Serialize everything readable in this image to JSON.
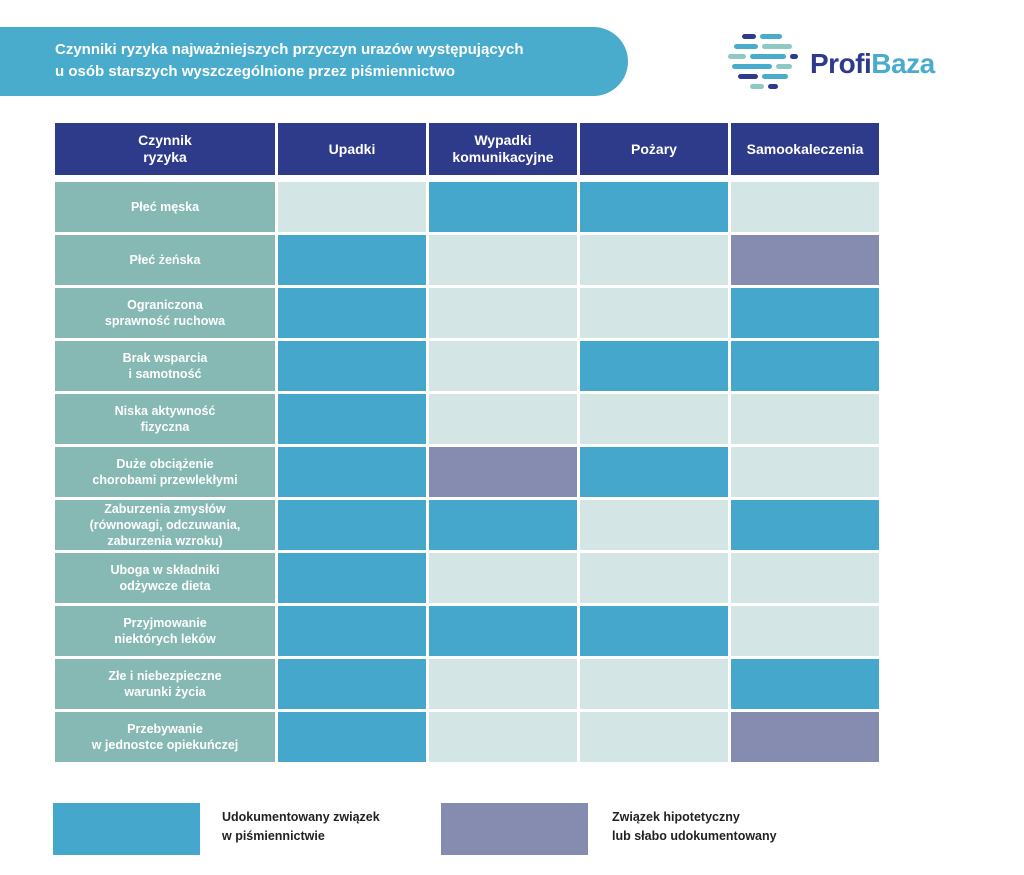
{
  "title": {
    "line1": "Czynniki ryzyka najważniejszych przyczyn urazów występujących",
    "line2": "u osób starszych wyszczególnione przez piśmiennictwo"
  },
  "logo": {
    "part1": "Profi",
    "part2": "Baza"
  },
  "table": {
    "factor_header": [
      "Czynnik",
      "ryzyka"
    ],
    "columns": [
      [
        "Upadki"
      ],
      [
        "Wypadki",
        "komunikacyjne"
      ],
      [
        "Pożary"
      ],
      [
        "Samookaleczenia"
      ]
    ],
    "rows": [
      {
        "factor": [
          "Płeć męska"
        ],
        "cells": [
          "none",
          "doc",
          "doc",
          "none"
        ]
      },
      {
        "factor": [
          "Płeć żeńska"
        ],
        "cells": [
          "doc",
          "none",
          "none",
          "hypo"
        ]
      },
      {
        "factor": [
          "Ograniczona",
          "sprawność ruchowa"
        ],
        "cells": [
          "doc",
          "none",
          "none",
          "doc"
        ]
      },
      {
        "factor": [
          "Brak wsparcia",
          "i samotność"
        ],
        "cells": [
          "doc",
          "none",
          "doc",
          "doc"
        ]
      },
      {
        "factor": [
          "Niska aktywność",
          "fizyczna"
        ],
        "cells": [
          "doc",
          "none",
          "none",
          "none"
        ]
      },
      {
        "factor": [
          "Duże obciążenie",
          "chorobami przewlekłymi"
        ],
        "cells": [
          "doc",
          "hypo",
          "doc",
          "none"
        ]
      },
      {
        "factor": [
          "Zaburzenia zmysłów",
          "(równowagi, odczuwania,",
          "zaburzenia wzroku)"
        ],
        "cells": [
          "doc",
          "doc",
          "none",
          "doc"
        ]
      },
      {
        "factor": [
          "Uboga w składniki",
          "odżywcze dieta"
        ],
        "cells": [
          "doc",
          "none",
          "none",
          "none"
        ]
      },
      {
        "factor": [
          "Przyjmowanie",
          "niektórych leków"
        ],
        "cells": [
          "doc",
          "doc",
          "doc",
          "none"
        ]
      },
      {
        "factor": [
          "Złe i niebezpieczne",
          "warunki życia"
        ],
        "cells": [
          "doc",
          "none",
          "none",
          "doc"
        ]
      },
      {
        "factor": [
          "Przebywanie",
          "w jednostce opiekuńczej"
        ],
        "cells": [
          "doc",
          "none",
          "none",
          "hypo"
        ]
      }
    ]
  },
  "legend": {
    "documented": [
      "Udokumentowany związek",
      "w piśmiennictwie"
    ],
    "hypothetical": [
      "Związek hipotetyczny",
      "lub słabo udokumentowany"
    ]
  },
  "colors": {
    "documented": "#44a7cb",
    "hypothetical": "#868caf",
    "none": "#d4e5e6",
    "header": "#2e3a8a",
    "factor": "#86b9b3",
    "banner": "#4aaccc"
  }
}
